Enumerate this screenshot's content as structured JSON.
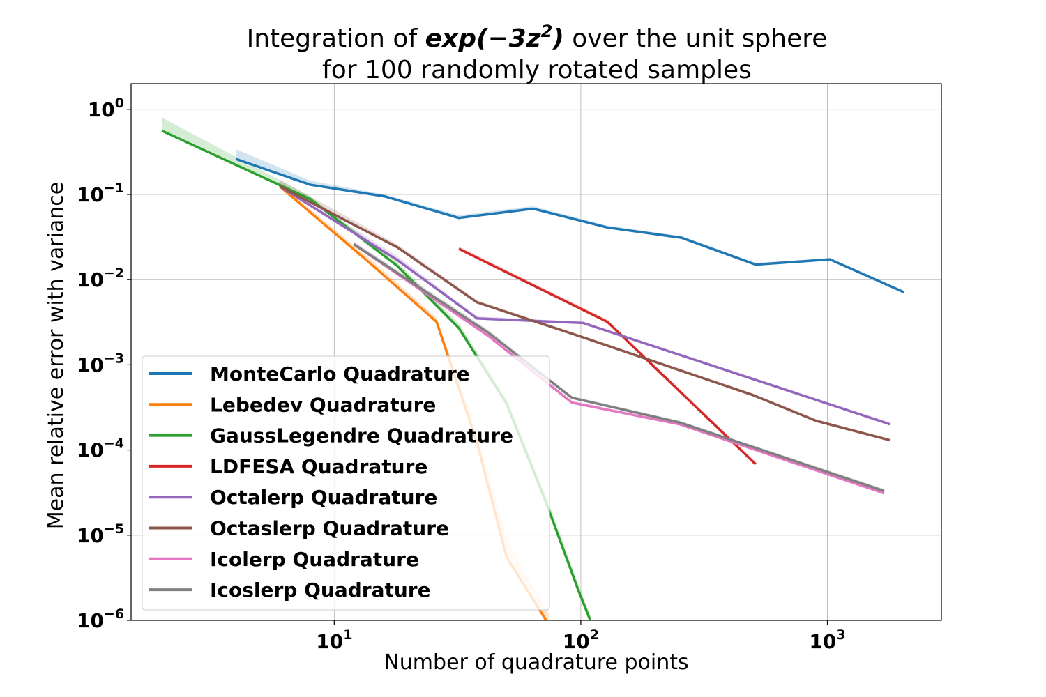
{
  "chart_data": {
    "type": "line",
    "title": {
      "line1_prefix": "Integration of ",
      "line1_math_base": "exp(−3z",
      "line1_math_sup": "2",
      "line1_math_close": ")",
      "line1_suffix": " over the unit sphere",
      "line2": "for 100 randomly rotated samples"
    },
    "xlabel": "Number of quadrature points",
    "ylabel": "Mean relative error with variance",
    "xscale": "log",
    "yscale": "log",
    "xlim": [
      1.5,
      2900
    ],
    "ylim": [
      1e-06,
      2
    ],
    "grid": true,
    "legend_position": "lower-left",
    "x_ticks": [
      {
        "value": 10,
        "base": "10",
        "exp": "1"
      },
      {
        "value": 100,
        "base": "10",
        "exp": "2"
      },
      {
        "value": 1000,
        "base": "10",
        "exp": "3"
      }
    ],
    "y_ticks": [
      {
        "value": 1,
        "base": "10",
        "exp": "0"
      },
      {
        "value": 0.1,
        "base": "10",
        "exp": "−1"
      },
      {
        "value": 0.01,
        "base": "10",
        "exp": "−2"
      },
      {
        "value": 0.001,
        "base": "10",
        "exp": "−3"
      },
      {
        "value": 0.0001,
        "base": "10",
        "exp": "−4"
      },
      {
        "value": 1e-05,
        "base": "10",
        "exp": "−5"
      },
      {
        "value": 1e-06,
        "base": "10",
        "exp": "−6"
      }
    ],
    "series": [
      {
        "name": "MonteCarlo Quadrature",
        "color": "#1f77b4",
        "x": [
          4,
          8,
          16,
          32,
          64,
          128,
          256,
          512,
          1024,
          2048
        ],
        "y": [
          0.26,
          0.13,
          0.095,
          0.053,
          0.068,
          0.041,
          0.031,
          0.015,
          0.0173,
          0.0071
        ],
        "upper": [
          0.34,
          0.145,
          0.1,
          0.057,
          0.073,
          0.043,
          0.0325,
          0.0157,
          0.0178,
          0.0073
        ]
      },
      {
        "name": "Lebedev Quadrature",
        "color": "#ff7f0e",
        "x": [
          6,
          14,
          26,
          38,
          50,
          74
        ],
        "y": [
          0.125,
          0.0155,
          0.0032,
          0.00012,
          5.5e-06,
          9e-07
        ],
        "upper": [
          0.135,
          0.0175,
          0.0036,
          0.00016,
          9e-06,
          1.2e-06
        ]
      },
      {
        "name": "GaussLegendre Quadrature",
        "color": "#2ca02c",
        "x": [
          2,
          8,
          18,
          32,
          50,
          72,
          98,
          110
        ],
        "y": [
          0.56,
          0.088,
          0.0145,
          0.0027,
          0.00035,
          2.5e-05,
          2.2e-06,
          9.5e-07
        ],
        "upper": [
          0.8,
          0.095,
          0.016,
          0.0031,
          0.0004,
          3e-05,
          2.6e-06,
          1.1e-06
        ]
      },
      {
        "name": "LDFESA Quadrature",
        "color": "#d62728",
        "x": [
          32,
          128,
          512
        ],
        "y": [
          0.023,
          0.0032,
          6.8e-05
        ],
        "upper": [
          0.0245,
          0.0034,
          7.2e-05
        ]
      },
      {
        "name": "Octalerp Quadrature",
        "color": "#9467bd",
        "x": [
          6,
          18,
          38,
          102,
          1800
        ],
        "y": [
          0.125,
          0.017,
          0.0035,
          0.0031,
          0.0002
        ],
        "upper": [
          0.14,
          0.019,
          0.0037,
          0.0032,
          0.00021
        ]
      },
      {
        "name": "Octaslerp Quadrature",
        "color": "#8c564b",
        "x": [
          6,
          18,
          38,
          102,
          500,
          900,
          1800
        ],
        "y": [
          0.125,
          0.024,
          0.0054,
          0.0021,
          0.00044,
          0.00022,
          0.00013
        ],
        "upper": [
          0.15,
          0.026,
          0.0057,
          0.0022,
          0.00046,
          0.00023,
          0.000135
        ]
      },
      {
        "name": "Icolerp Quadrature",
        "color": "#e377c2",
        "x": [
          12,
          42,
          92,
          252,
          1700
        ],
        "y": [
          0.026,
          0.0022,
          0.00036,
          0.0002,
          3.1e-05
        ],
        "upper": [
          0.028,
          0.0024,
          0.00038,
          0.00021,
          3.3e-05
        ]
      },
      {
        "name": "Icoslerp Quadrature",
        "color": "#7f7f7f",
        "x": [
          12,
          42,
          92,
          252,
          1700
        ],
        "y": [
          0.026,
          0.0024,
          0.00041,
          0.00021,
          3.3e-05
        ],
        "upper": [
          0.028,
          0.0026,
          0.00043,
          0.00022,
          3.5e-05
        ]
      }
    ]
  }
}
